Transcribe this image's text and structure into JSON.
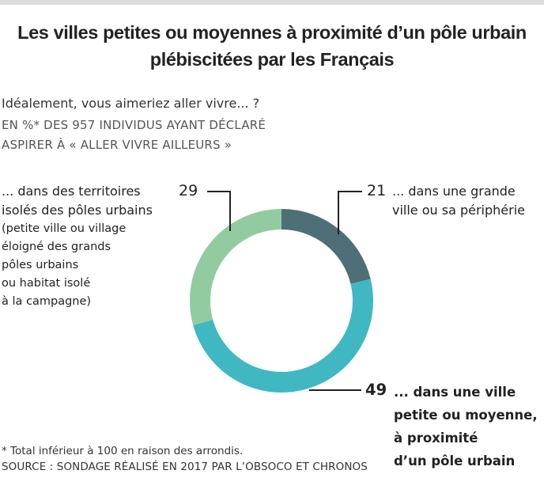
{
  "title_lines": [
    "Les villes petites ou moyennes à proximité d’un pôle urbain",
    "plébiscitées par les Français"
  ],
  "question": "Idéalement, vous aimeriez aller vivre... ?",
  "subtitle_lines": [
    "EN %* DES 957 INDIVIDUS AYANT DÉCLARÉ",
    "ASPIRER À « ALLER VIVRE AILLEURS »"
  ],
  "chart_data": {
    "type": "pie",
    "donut": true,
    "unit": "%",
    "slices": [
      {
        "value": 21,
        "color": "#4e6e78",
        "label_lines": [
          "... dans une grande",
          "ville ou sa périphérie"
        ],
        "note_lines": []
      },
      {
        "value": 49,
        "color": "#3fb8c2",
        "label_lines": [
          "... dans une ville",
          "petite ou moyenne,",
          "à proximité",
          "d’un pôle urbain"
        ],
        "note_lines": []
      },
      {
        "value": 29,
        "color": "#93cba0",
        "label_lines": [
          "... dans des territoires",
          "isolés des pôles urbains"
        ],
        "note_lines": [
          "(petite ville ou village",
          "éloigné des grands",
          "pôles urbains",
          "ou habitat isolé",
          "à la campagne)"
        ]
      }
    ]
  },
  "footnote": "* Total inférieur à 100 en raison des arrondis.",
  "source": "SOURCE : SONDAGE RÉALISÉ EN 2017 PAR L’OBSOCO ET CHRONOS"
}
